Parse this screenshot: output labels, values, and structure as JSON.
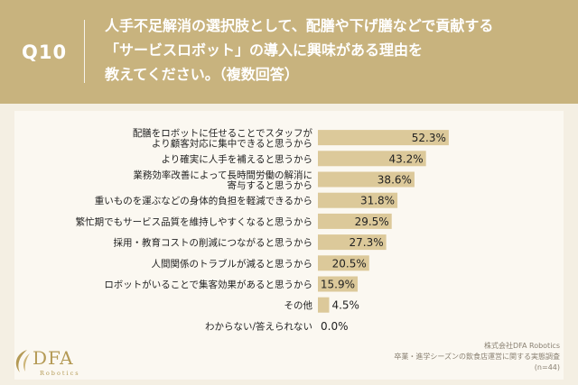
{
  "header": {
    "question_number": "Q10",
    "question_lines": [
      "人手不足解消の選択肢として、配膳や下げ膳などで貢献する",
      "「サービスロボット」の導入に興味がある理由を",
      "教えてください。（複数回答）"
    ]
  },
  "colors": {
    "header_bg": "#c8b37e",
    "bar": "#dcc99a",
    "brand": "#b49a55"
  },
  "chart_data": {
    "type": "bar",
    "orientation": "horizontal",
    "unit": "%",
    "xlim": [
      0,
      100
    ],
    "categories": [
      [
        "配膳をロボットに任せることでスタッフが",
        "より顧客対応に集中できると思うから"
      ],
      [
        "より確実に人手を補えると思うから"
      ],
      [
        "業務効率改善によって長時間労働の解消に",
        "寄与すると思うから"
      ],
      [
        "重いものを運ぶなどの身体的負担を軽減できるから"
      ],
      [
        "繁忙期でもサービス品質を維持しやすくなると思うから"
      ],
      [
        "採用・教育コストの削減につながると思うから"
      ],
      [
        "人間関係のトラブルが減ると思うから"
      ],
      [
        "ロボットがいることで集客効果があると思うから"
      ],
      [
        "その他"
      ],
      [
        "わからない/答えられない"
      ]
    ],
    "values": [
      52.3,
      43.2,
      38.6,
      31.8,
      29.5,
      27.3,
      20.5,
      15.9,
      4.5,
      0.0
    ],
    "value_labels": [
      "52.3%",
      "43.2%",
      "38.6%",
      "31.8%",
      "29.5%",
      "27.3%",
      "20.5%",
      "15.9%",
      "4.5%",
      "0.0%"
    ]
  },
  "logo": {
    "word": "DFA",
    "sub": "Robotics"
  },
  "source": {
    "company": "株式会社DFA Robotics",
    "survey": "卒業・進学シーズンの飲食店運営に関する実態調査",
    "sample": "(n=44)"
  }
}
